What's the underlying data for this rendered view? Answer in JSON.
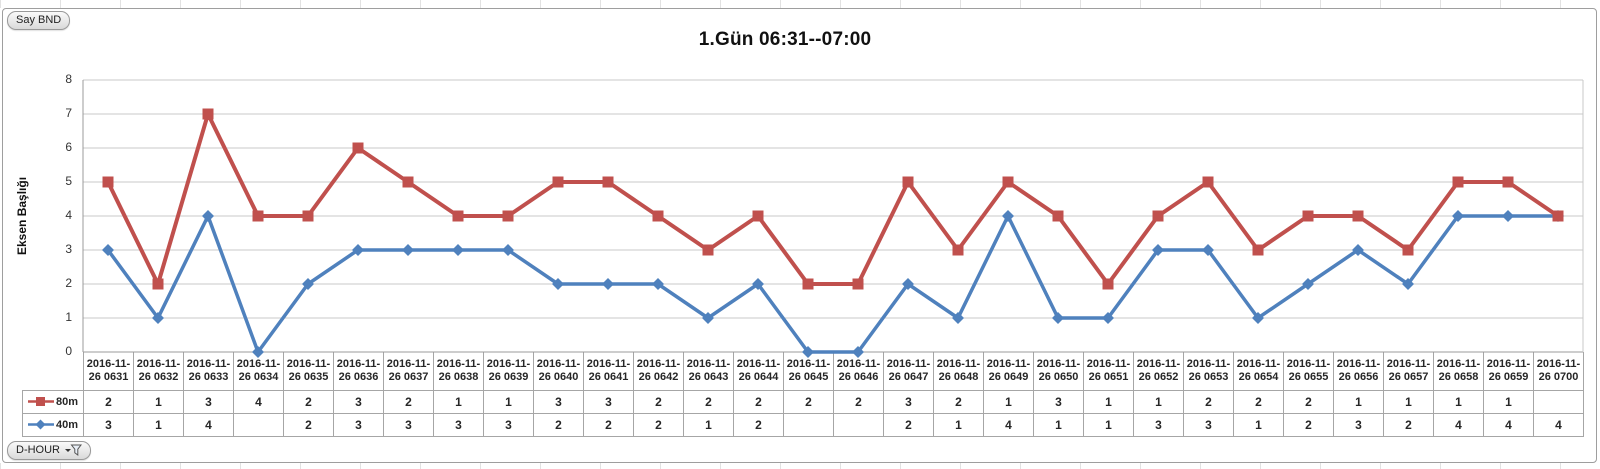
{
  "window": {
    "say_bnd_label": "Say BND",
    "d_hour_label": "D-HOUR"
  },
  "chart_data": {
    "type": "line",
    "stacking": "stacked",
    "title": "1.Gün 06:31--07:00",
    "ylabel": "Eksen Başlığı",
    "xlabel": "",
    "ylim": [
      0,
      8
    ],
    "y_ticks": [
      0,
      1,
      2,
      3,
      4,
      5,
      6,
      7,
      8
    ],
    "grid": true,
    "legend_position": "data-table-left",
    "categories_top_line": "2016-11-",
    "categories": [
      "26 0631",
      "26 0632",
      "26 0633",
      "26 0634",
      "26 0635",
      "26 0636",
      "26 0637",
      "26 0638",
      "26 0639",
      "26 0640",
      "26 0641",
      "26 0642",
      "26 0643",
      "26 0644",
      "26 0645",
      "26 0646",
      "26 0647",
      "26 0648",
      "26 0649",
      "26 0650",
      "26 0651",
      "26 0652",
      "26 0653",
      "26 0654",
      "26 0655",
      "26 0656",
      "26 0657",
      "26 0658",
      "26 0659",
      "26 0700"
    ],
    "series": [
      {
        "name": "80m",
        "color": "#C0504D",
        "marker": "square",
        "table_values": [
          "2",
          "1",
          "3",
          "4",
          "2",
          "3",
          "2",
          "1",
          "1",
          "3",
          "3",
          "2",
          "2",
          "2",
          "2",
          "2",
          "3",
          "2",
          "1",
          "3",
          "1",
          "1",
          "2",
          "2",
          "2",
          "1",
          "1",
          "1",
          "1",
          ""
        ],
        "plotted_values": [
          5,
          2,
          7,
          4,
          4,
          6,
          5,
          4,
          4,
          5,
          5,
          4,
          3,
          4,
          2,
          2,
          5,
          3,
          5,
          4,
          2,
          4,
          5,
          3,
          4,
          4,
          3,
          5,
          5,
          4
        ]
      },
      {
        "name": "40m",
        "color": "#4F81BD",
        "marker": "diamond",
        "table_values": [
          "3",
          "1",
          "4",
          "",
          "2",
          "3",
          "3",
          "3",
          "3",
          "2",
          "2",
          "2",
          "1",
          "2",
          "",
          "",
          "2",
          "1",
          "4",
          "1",
          "1",
          "3",
          "3",
          "1",
          "2",
          "3",
          "2",
          "4",
          "4",
          "4"
        ],
        "plotted_values": [
          3,
          1,
          4,
          0,
          2,
          3,
          3,
          3,
          3,
          2,
          2,
          2,
          1,
          2,
          0,
          0,
          2,
          1,
          4,
          1,
          1,
          3,
          3,
          1,
          2,
          3,
          2,
          4,
          4,
          4
        ]
      }
    ],
    "colors": {
      "gridline": "#c8c8c8",
      "axis": "#9b9b9b",
      "table_border": "#a6a6a6"
    }
  }
}
